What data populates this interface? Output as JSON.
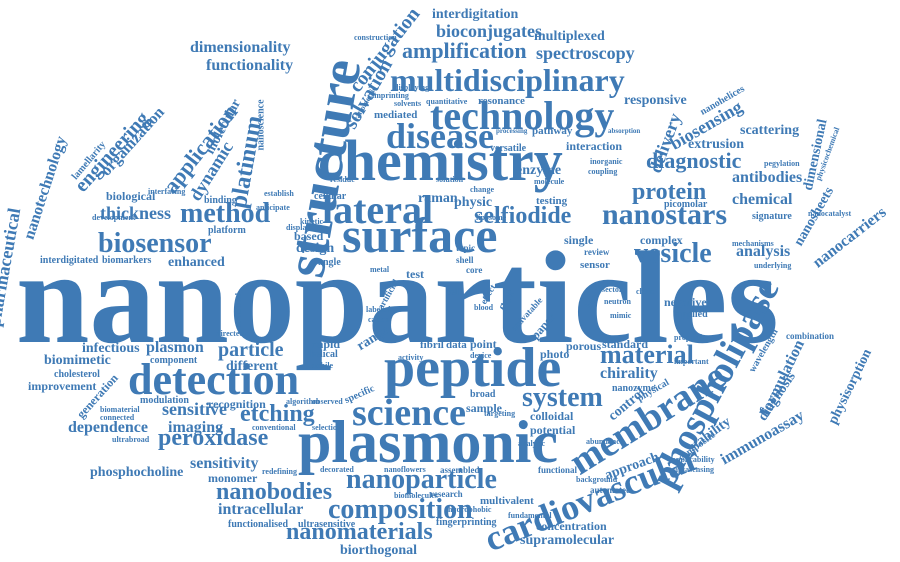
{
  "color": "#3f7ab5",
  "words": [
    {
      "key": "nanoparticles",
      "text": "nanoparticles"
    },
    {
      "key": "chemistry",
      "text": "chemistry"
    },
    {
      "key": "structure",
      "text": "structure"
    },
    {
      "key": "plasmonic",
      "text": "plasmonic"
    },
    {
      "key": "peptide",
      "text": "peptide"
    },
    {
      "key": "surface",
      "text": "surface"
    },
    {
      "key": "detection",
      "text": "detection"
    },
    {
      "key": "lateral",
      "text": "lateral"
    },
    {
      "key": "technology",
      "text": "technology"
    },
    {
      "key": "multidisciplinary",
      "text": "multidisciplinary"
    },
    {
      "key": "disease",
      "text": "disease"
    },
    {
      "key": "science",
      "text": "science"
    },
    {
      "key": "membrane",
      "text": "membrane"
    },
    {
      "key": "phospholipase",
      "text": "phospholipase"
    },
    {
      "key": "cardiovascular",
      "text": "cardiovascular"
    },
    {
      "key": "nanoparticle",
      "text": "nanoparticle"
    },
    {
      "key": "composition",
      "text": "composition"
    },
    {
      "key": "nanomaterials",
      "text": "nanomaterials"
    },
    {
      "key": "nanobodies",
      "text": "nanobodies"
    },
    {
      "key": "biosensor",
      "text": "biosensor"
    },
    {
      "key": "method",
      "text": "method"
    },
    {
      "key": "selfiodide",
      "text": "selfiodide"
    },
    {
      "key": "nanostars",
      "text": "nanostars"
    },
    {
      "key": "vesicle",
      "text": "vesicle"
    },
    {
      "key": "material",
      "text": "material"
    },
    {
      "key": "system",
      "text": "system"
    },
    {
      "key": "etching",
      "text": "etching"
    },
    {
      "key": "peroxidase",
      "text": "peroxidase"
    },
    {
      "key": "amplification",
      "text": "amplification"
    },
    {
      "key": "platinum",
      "text": "platinum"
    },
    {
      "key": "solvation",
      "text": "solvation"
    },
    {
      "key": "protein",
      "text": "protein"
    },
    {
      "key": "diagnostic",
      "text": "diagnostic"
    },
    {
      "key": "spectroscopy",
      "text": "spectroscopy"
    },
    {
      "key": "conjugation",
      "text": "conjugation"
    },
    {
      "key": "bioconjugates",
      "text": "bioconjugates"
    },
    {
      "key": "interdigitation",
      "text": "interdigitation"
    },
    {
      "key": "multiplexed",
      "text": "multiplexed"
    },
    {
      "key": "dimensionality",
      "text": "dimensionality"
    },
    {
      "key": "functionality",
      "text": "functionality"
    },
    {
      "key": "construction",
      "text": "construction"
    },
    {
      "key": "application",
      "text": "application"
    },
    {
      "key": "engineering",
      "text": "engineering"
    },
    {
      "key": "organization",
      "text": "organization"
    },
    {
      "key": "nanotechnology",
      "text": "nanotechnology"
    },
    {
      "key": "biopharmaceutical",
      "text": "biopharmaceutical"
    },
    {
      "key": "thickness",
      "text": "thickness"
    },
    {
      "key": "dynamic",
      "text": "dynamic"
    },
    {
      "key": "molecular",
      "text": "molecular"
    },
    {
      "key": "nanoscience",
      "text": "nanoscience"
    },
    {
      "key": "biosensing",
      "text": "biosensing"
    },
    {
      "key": "responsive",
      "text": "responsive"
    },
    {
      "key": "delivery",
      "text": "delivery"
    },
    {
      "key": "nanohelices",
      "text": "nanohelices"
    },
    {
      "key": "scattering",
      "text": "scattering"
    },
    {
      "key": "extrusion",
      "text": "extrusion"
    },
    {
      "key": "antibodies",
      "text": "antibodies"
    },
    {
      "key": "dimensional",
      "text": "dimensional"
    },
    {
      "key": "chemical",
      "text": "chemical"
    },
    {
      "key": "nanosheets",
      "text": "nanosheets"
    },
    {
      "key": "nanocarriers",
      "text": "nanocarriers"
    },
    {
      "key": "analysis",
      "text": "analysis"
    },
    {
      "key": "complex",
      "text": "complex"
    },
    {
      "key": "enzyme",
      "text": "enzyme"
    },
    {
      "key": "physic",
      "text": "physic"
    },
    {
      "key": "raman",
      "text": "raman"
    },
    {
      "key": "interaction",
      "text": "interaction"
    },
    {
      "key": "pathway",
      "text": "pathway"
    },
    {
      "key": "resonance",
      "text": "resonance"
    },
    {
      "key": "versatile",
      "text": "versatile"
    },
    {
      "key": "mediated",
      "text": "mediated"
    },
    {
      "key": "solvents",
      "text": "solvents"
    },
    {
      "key": "signature",
      "text": "signature"
    },
    {
      "key": "picomolar",
      "text": "picomolar"
    },
    {
      "key": "testing",
      "text": "testing"
    },
    {
      "key": "cellular",
      "text": "cellular"
    },
    {
      "key": "design",
      "text": "design"
    },
    {
      "key": "based",
      "text": "based"
    },
    {
      "key": "enhanced",
      "text": "enhanced"
    },
    {
      "key": "biomarkers",
      "text": "biomarkers"
    },
    {
      "key": "interdigitated",
      "text": "interdigitated"
    },
    {
      "key": "biological",
      "text": "biological"
    },
    {
      "key": "binding",
      "text": "binding"
    },
    {
      "key": "platform",
      "text": "platform"
    },
    {
      "key": "development",
      "text": "development"
    },
    {
      "key": "lamellarity",
      "text": "lamellarity"
    },
    {
      "key": "infectious",
      "text": "infectious"
    },
    {
      "key": "plasmon",
      "text": "plasmon"
    },
    {
      "key": "particle",
      "text": "particle"
    },
    {
      "key": "biomimetic",
      "text": "biomimetic"
    },
    {
      "key": "cholesterol",
      "text": "cholesterol"
    },
    {
      "key": "improvement",
      "text": "improvement"
    },
    {
      "key": "generation",
      "text": "generation"
    },
    {
      "key": "different",
      "text": "different"
    },
    {
      "key": "component",
      "text": "component"
    },
    {
      "key": "helical",
      "text": "helical"
    },
    {
      "key": "rapid",
      "text": "rapid"
    },
    {
      "key": "mobile",
      "text": "mobile"
    },
    {
      "key": "range",
      "text": "range"
    },
    {
      "key": "fibril",
      "text": "fibril"
    },
    {
      "key": "data",
      "text": "data"
    },
    {
      "key": "point",
      "text": "point"
    },
    {
      "key": "paper",
      "text": "paper"
    },
    {
      "key": "photo",
      "text": "photo"
    },
    {
      "key": "porous",
      "text": "porous"
    },
    {
      "key": "standard",
      "text": "standard"
    },
    {
      "key": "chirality",
      "text": "chirality"
    },
    {
      "key": "nanozyme",
      "text": "nanozyme"
    },
    {
      "key": "broad",
      "text": "broad"
    },
    {
      "key": "sample",
      "text": "sample"
    },
    {
      "key": "specific",
      "text": "specific"
    },
    {
      "key": "colloidal",
      "text": "colloidal"
    },
    {
      "key": "potential",
      "text": "potential"
    },
    {
      "key": "control",
      "text": "control"
    },
    {
      "key": "approach",
      "text": "approach"
    },
    {
      "key": "stability",
      "text": "stability"
    },
    {
      "key": "composite",
      "text": "composite"
    },
    {
      "key": "immunoassay",
      "text": "immunoassay"
    },
    {
      "key": "formulation",
      "text": "formulation"
    },
    {
      "key": "diagnosis",
      "text": "diagnosis"
    },
    {
      "key": "wavelength",
      "text": "wavelength"
    },
    {
      "key": "physisorption",
      "text": "physisorption"
    },
    {
      "key": "combination",
      "text": "combination"
    },
    {
      "key": "sensitive",
      "text": "sensitive"
    },
    {
      "key": "dependence",
      "text": "dependence"
    },
    {
      "key": "imaging",
      "text": "imaging"
    },
    {
      "key": "recognition",
      "text": "recognition"
    },
    {
      "key": "modulation",
      "text": "modulation"
    },
    {
      "key": "biomaterial",
      "text": "biomaterial"
    },
    {
      "key": "connected",
      "text": "connected"
    },
    {
      "key": "ultrabroad",
      "text": "ultrabroad"
    },
    {
      "key": "sensitivity",
      "text": "sensitivity"
    },
    {
      "key": "phosphocholine",
      "text": "phosphocholine"
    },
    {
      "key": "monomer",
      "text": "monomer"
    },
    {
      "key": "intracellular",
      "text": "intracellular"
    },
    {
      "key": "functionalised",
      "text": "functionalised"
    },
    {
      "key": "ultrasensitive",
      "text": "ultrasensitive"
    },
    {
      "key": "biorthogonal",
      "text": "biorthogonal"
    },
    {
      "key": "supramolecular",
      "text": "supramolecular"
    },
    {
      "key": "concentration",
      "text": "concentration"
    },
    {
      "key": "fingerprinting",
      "text": "fingerprinting"
    },
    {
      "key": "multivalent",
      "text": "multivalent"
    },
    {
      "key": "research",
      "text": "research"
    },
    {
      "key": "assembled",
      "text": "assembled"
    },
    {
      "key": "nanoflowers",
      "text": "nanoflowers"
    },
    {
      "key": "decorated",
      "text": "decorated"
    },
    {
      "key": "functional",
      "text": "functional"
    },
    {
      "key": "automated",
      "text": "automated"
    },
    {
      "key": "aptasensing",
      "text": "aptasensing"
    },
    {
      "key": "physical",
      "text": "physical"
    },
    {
      "key": "abundance",
      "text": "abundance"
    },
    {
      "key": "negative",
      "text": "negative"
    },
    {
      "key": "applied",
      "text": "applied"
    },
    {
      "key": "sensor",
      "text": "sensor"
    },
    {
      "key": "review",
      "text": "review"
    },
    {
      "key": "single",
      "text": "single"
    },
    {
      "key": "flow",
      "text": "flow"
    },
    {
      "key": "effect",
      "text": "effect"
    },
    {
      "key": "activatable",
      "text": "activatable"
    },
    {
      "key": "mimic",
      "text": "mimic"
    },
    {
      "key": "sector",
      "text": "sector"
    },
    {
      "key": "neutron",
      "text": "neutron"
    },
    {
      "key": "properties",
      "text": "properties"
    },
    {
      "key": "important",
      "text": "important"
    },
    {
      "key": "mechanisms",
      "text": "mechanisms"
    },
    {
      "key": "nanocatalyst",
      "text": "nanocatalyst"
    },
    {
      "key": "pegylation",
      "text": "pegylation"
    },
    {
      "key": "physicochemical",
      "text": "physicochemical"
    },
    {
      "key": "underlying",
      "text": "underlying"
    },
    {
      "key": "imprinting",
      "text": "imprinting"
    },
    {
      "key": "displaying",
      "text": "displaying"
    },
    {
      "key": "ratiometric",
      "text": "ratiometric"
    },
    {
      "key": "quantitative",
      "text": "quantitative"
    },
    {
      "key": "interfacing",
      "text": "interfacing"
    },
    {
      "key": "anticipate",
      "text": "anticipate"
    },
    {
      "key": "establish",
      "text": "establish"
    },
    {
      "key": "residue",
      "text": "residue"
    },
    {
      "key": "kinetic",
      "text": "kinetic"
    },
    {
      "key": "display",
      "text": "display"
    },
    {
      "key": "angle",
      "text": "angle"
    },
    {
      "key": "cell",
      "text": "cell"
    },
    {
      "key": "topic",
      "text": "topic"
    },
    {
      "key": "shell",
      "text": "shell"
    },
    {
      "key": "core",
      "text": "core"
    },
    {
      "key": "artificial",
      "text": "artificial"
    },
    {
      "key": "blood",
      "text": "blood"
    },
    {
      "key": "cation",
      "text": "cation"
    },
    {
      "key": "labeled",
      "text": "labeled"
    },
    {
      "key": "structural",
      "text": "structural"
    },
    {
      "key": "directed",
      "text": "directed"
    },
    {
      "key": "observed",
      "text": "observed"
    },
    {
      "key": "conventional",
      "text": "conventional"
    },
    {
      "key": "selection",
      "text": "selection"
    },
    {
      "key": "redefining",
      "text": "redefining"
    },
    {
      "key": "algorithm",
      "text": "algorithm"
    },
    {
      "key": "hydrophobic",
      "text": "hydrophobic"
    },
    {
      "key": "biomolecules",
      "text": "biomolecules"
    },
    {
      "key": "fundamental",
      "text": "fundamental"
    },
    {
      "key": "background",
      "text": "background"
    },
    {
      "key": "applicability",
      "text": "applicability"
    },
    {
      "key": "targeting",
      "text": "targeting"
    },
    {
      "key": "analytic",
      "text": "analytic"
    },
    {
      "key": "test",
      "text": "test"
    },
    {
      "key": "metal",
      "text": "metal"
    },
    {
      "key": "change",
      "text": "change"
    },
    {
      "key": "health",
      "text": "health"
    },
    {
      "key": "device",
      "text": "device"
    },
    {
      "key": "activity",
      "text": "activity"
    },
    {
      "key": "chain",
      "text": "chain"
    },
    {
      "key": "coupling",
      "text": "coupling"
    },
    {
      "key": "inorganic",
      "text": "inorganic"
    },
    {
      "key": "absorption",
      "text": "absorption"
    },
    {
      "key": "molecule",
      "text": "molecule"
    },
    {
      "key": "liposome",
      "text": "liposome"
    },
    {
      "key": "solution",
      "text": "solution"
    },
    {
      "key": "processing",
      "text": "processing"
    }
  ]
}
